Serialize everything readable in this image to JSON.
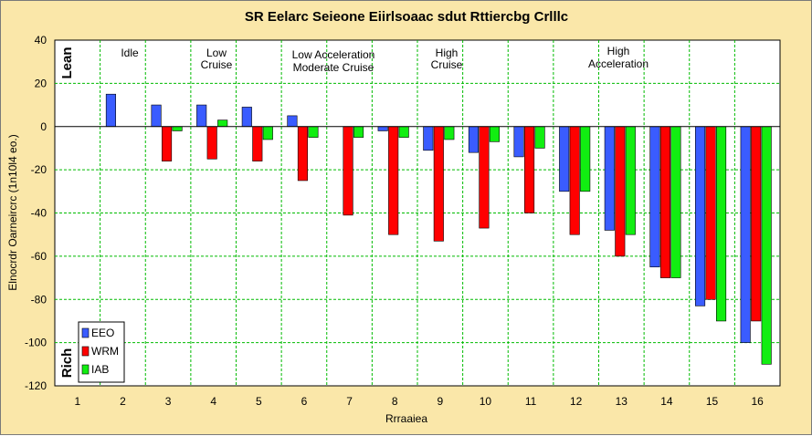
{
  "chart_data": {
    "type": "bar",
    "title": "SR Eelarc Seieone Eiirlsoaac sdut Rttiercbg Crlllc",
    "xlabel": "Rrraaiea",
    "ylabel": "Elnocrdr Oarneircrc (1n10l4 eo.)",
    "ylim": [
      -120,
      40
    ],
    "y_ticks": [
      "40",
      "20",
      "0",
      "-20",
      "-40",
      "-60",
      "-80",
      "-100",
      "-120"
    ],
    "categories": [
      "1",
      "2",
      "3",
      "4",
      "5",
      "6",
      "7",
      "8",
      "9",
      "10",
      "11",
      "12",
      "13",
      "14",
      "15",
      "16"
    ],
    "series": [
      {
        "name": "EEO",
        "color": "#3a5cff",
        "values": [
          0,
          15,
          10,
          10,
          9,
          5,
          0,
          -2,
          -11,
          -12,
          -14,
          -30,
          -48,
          -65,
          -83,
          -100
        ]
      },
      {
        "name": "WRM",
        "color": "#ff0000",
        "values": [
          0,
          0,
          -16,
          -15,
          -16,
          -25,
          -41,
          -50,
          -53,
          -47,
          -40,
          -50,
          -60,
          -70,
          -80,
          -90
        ]
      },
      {
        "name": "IAB",
        "color": "#11ee11",
        "values": [
          0,
          0,
          -2,
          3,
          -6,
          -5,
          -5,
          -5,
          -6,
          -7,
          -10,
          -30,
          -50,
          -70,
          -90,
          -110
        ]
      }
    ],
    "grid": true,
    "legend_position": "bottom-left",
    "annotations": [
      "Idle",
      "Low",
      "Cruise",
      "Low Acceleration",
      "Moderate Cruise",
      "High",
      "Cruise",
      "High",
      "Acceleration"
    ],
    "side_labels": {
      "top": "Lean",
      "bottom": "Rich"
    },
    "colors": {
      "background": "#fae7a9",
      "plot_bg": "#ffffff",
      "grid": "#00bb00"
    }
  }
}
